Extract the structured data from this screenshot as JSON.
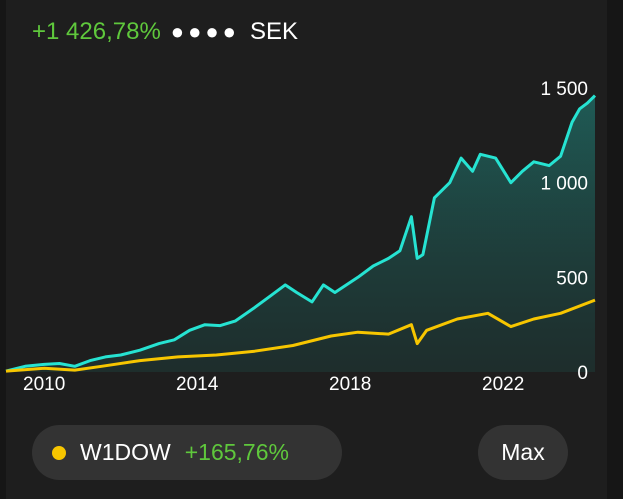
{
  "header": {
    "gain_text": "+1 426,78%",
    "masked_value": "●●●●",
    "currency": "SEK"
  },
  "chart_data": {
    "type": "line",
    "x_ticks": [
      "2010",
      "2014",
      "2018",
      "2022"
    ],
    "y_ticks": [
      "0",
      "500",
      "1 000",
      "1 500"
    ],
    "ylim": [
      0,
      1500
    ],
    "xlim": [
      2009.0,
      2024.4
    ],
    "y_axis_position": "right",
    "grid": false,
    "series": [
      {
        "color": "#26e3d2",
        "fill": true,
        "points": [
          [
            2009.0,
            5
          ],
          [
            2009.5,
            30
          ],
          [
            2010.0,
            40
          ],
          [
            2010.4,
            45
          ],
          [
            2010.8,
            30
          ],
          [
            2011.2,
            60
          ],
          [
            2011.6,
            80
          ],
          [
            2012.0,
            90
          ],
          [
            2012.5,
            115
          ],
          [
            2013.0,
            150
          ],
          [
            2013.4,
            170
          ],
          [
            2013.8,
            220
          ],
          [
            2014.2,
            250
          ],
          [
            2014.6,
            245
          ],
          [
            2015.0,
            270
          ],
          [
            2015.5,
            340
          ],
          [
            2015.9,
            400
          ],
          [
            2016.3,
            460
          ],
          [
            2016.6,
            420
          ],
          [
            2017.0,
            370
          ],
          [
            2017.3,
            460
          ],
          [
            2017.6,
            420
          ],
          [
            2017.9,
            460
          ],
          [
            2018.2,
            500
          ],
          [
            2018.6,
            560
          ],
          [
            2019.0,
            600
          ],
          [
            2019.3,
            640
          ],
          [
            2019.6,
            820
          ],
          [
            2019.75,
            600
          ],
          [
            2019.9,
            620
          ],
          [
            2020.2,
            920
          ],
          [
            2020.6,
            1000
          ],
          [
            2020.9,
            1130
          ],
          [
            2021.2,
            1060
          ],
          [
            2021.4,
            1150
          ],
          [
            2021.8,
            1130
          ],
          [
            2022.2,
            1000
          ],
          [
            2022.5,
            1060
          ],
          [
            2022.8,
            1110
          ],
          [
            2023.2,
            1090
          ],
          [
            2023.5,
            1140
          ],
          [
            2023.8,
            1320
          ],
          [
            2024.0,
            1390
          ],
          [
            2024.2,
            1420
          ],
          [
            2024.4,
            1460
          ]
        ]
      },
      {
        "name": "W1DOW",
        "color": "#f7c600",
        "fill": false,
        "points": [
          [
            2009.0,
            5
          ],
          [
            2010.0,
            20
          ],
          [
            2010.8,
            10
          ],
          [
            2011.5,
            30
          ],
          [
            2012.5,
            60
          ],
          [
            2013.5,
            80
          ],
          [
            2014.5,
            90
          ],
          [
            2015.5,
            110
          ],
          [
            2016.5,
            140
          ],
          [
            2017.5,
            190
          ],
          [
            2018.2,
            210
          ],
          [
            2019.0,
            200
          ],
          [
            2019.6,
            250
          ],
          [
            2019.75,
            150
          ],
          [
            2020.0,
            220
          ],
          [
            2020.8,
            280
          ],
          [
            2021.6,
            310
          ],
          [
            2022.2,
            240
          ],
          [
            2022.8,
            280
          ],
          [
            2023.5,
            310
          ],
          [
            2024.4,
            380
          ]
        ]
      }
    ]
  },
  "legend": {
    "series_name": "W1DOW",
    "change": "+165,76%"
  },
  "range_button": {
    "label": "Max"
  }
}
